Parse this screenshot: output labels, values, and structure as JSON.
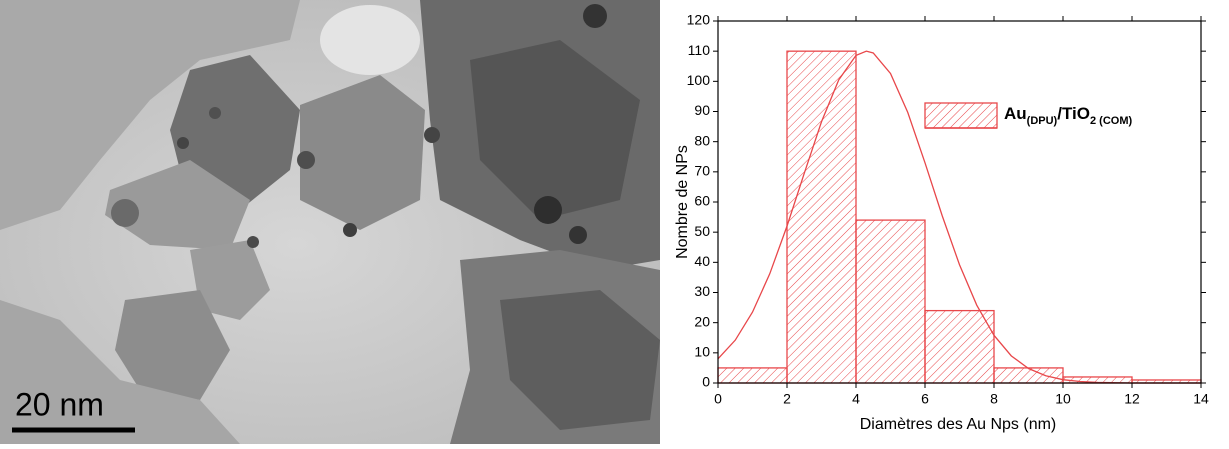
{
  "image": {
    "scale_label": "20 nm"
  },
  "chart_data": {
    "type": "histogram",
    "bins": [
      0,
      2,
      4,
      6,
      8,
      10,
      12,
      14
    ],
    "values": [
      5,
      110,
      54,
      24,
      5,
      2,
      1
    ],
    "color": "#e8474a",
    "xlabel": "Diamètres des Au Nps (nm)",
    "ylabel": "Nombre de NPs",
    "xlim": [
      0,
      14
    ],
    "xticks": [
      0,
      2,
      4,
      6,
      8,
      10,
      12,
      14
    ],
    "ylim": [
      0,
      120
    ],
    "yticks": [
      0,
      10,
      20,
      30,
      40,
      50,
      60,
      70,
      80,
      90,
      100,
      110,
      120
    ],
    "fit": {
      "x": [
        0,
        0.5,
        1,
        1.5,
        2,
        2.5,
        3,
        3.5,
        4,
        4.3,
        4.5,
        5,
        5.5,
        6,
        6.5,
        7,
        7.5,
        8,
        8.5,
        9,
        9.5,
        10,
        10.5,
        11,
        12,
        14
      ],
      "values": [
        8.0,
        14.2,
        23.5,
        36.2,
        52.0,
        69.5,
        86.6,
        100.5,
        108.6,
        110,
        109.4,
        102.6,
        89.7,
        73.0,
        55.4,
        39.2,
        25.8,
        15.8,
        9.0,
        4.8,
        2.4,
        1.1,
        0.5,
        0.2,
        0.0,
        0.0
      ]
    },
    "legend": {
      "location": "upper right",
      "parts": [
        {
          "text": "Au",
          "sub": false
        },
        {
          "text": "(DPU)",
          "sub": true
        },
        {
          "text": "/TiO",
          "sub": false
        },
        {
          "text": "2 (COM)",
          "sub": true
        }
      ]
    }
  }
}
